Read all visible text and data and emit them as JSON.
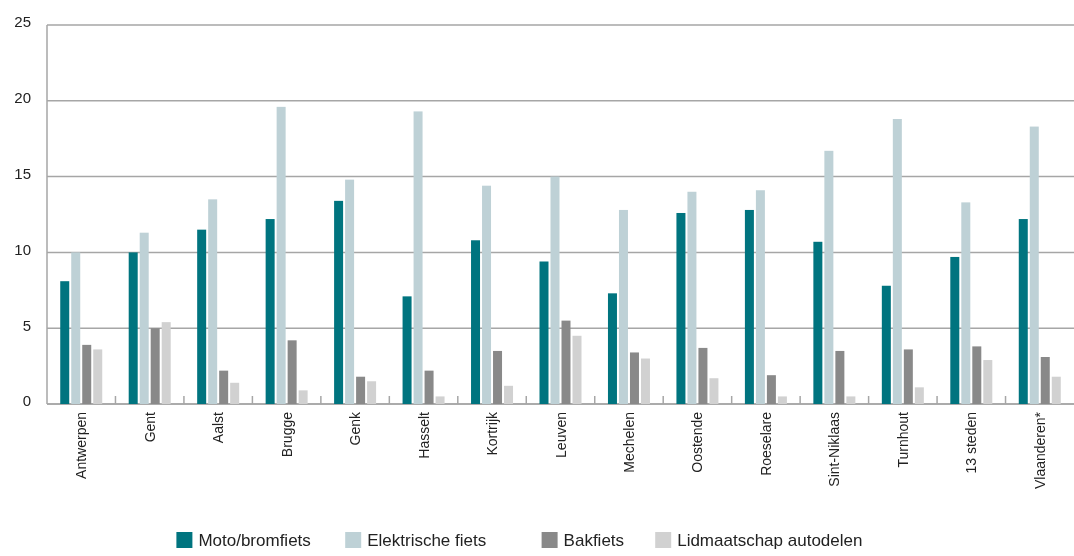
{
  "chart_data": {
    "type": "bar",
    "categories": [
      "Antwerpen",
      "Gent",
      "Aalst",
      "Brugge",
      "Genk",
      "Hasselt",
      "Kortrijk",
      "Leuven",
      "Mechelen",
      "Oostende",
      "Roeselare",
      "Sint-Niklaas",
      "Turnhout",
      "13 steden",
      "Vlaanderen*"
    ],
    "series": [
      {
        "name": "Moto/bromfiets",
        "color": "#00747f",
        "values": [
          8.1,
          10.0,
          11.5,
          12.2,
          13.4,
          7.1,
          10.8,
          9.4,
          7.3,
          12.6,
          12.8,
          10.7,
          7.8,
          9.7,
          12.2
        ]
      },
      {
        "name": "Elektrische fiets",
        "color": "#bed1d6",
        "values": [
          10.0,
          11.3,
          13.5,
          19.6,
          14.8,
          19.3,
          14.4,
          15.0,
          12.8,
          14.0,
          14.1,
          16.7,
          18.8,
          13.3,
          18.3
        ]
      },
      {
        "name": "Bakfiets",
        "color": "#898989",
        "values": [
          3.9,
          5.0,
          2.2,
          4.2,
          1.8,
          2.2,
          3.5,
          5.5,
          3.4,
          3.7,
          1.9,
          3.5,
          3.6,
          3.8,
          3.1
        ]
      },
      {
        "name": "Lidmaatschap autodelen",
        "color": "#d1d1d1",
        "values": [
          3.6,
          5.4,
          1.4,
          0.9,
          1.5,
          0.5,
          1.2,
          4.5,
          3.0,
          1.7,
          0.5,
          0.5,
          1.1,
          2.9,
          1.8
        ]
      }
    ],
    "ylim": [
      0,
      25
    ],
    "yticks": [
      0,
      5,
      10,
      15,
      20,
      25
    ],
    "grid": "y",
    "legend": "bottom"
  }
}
